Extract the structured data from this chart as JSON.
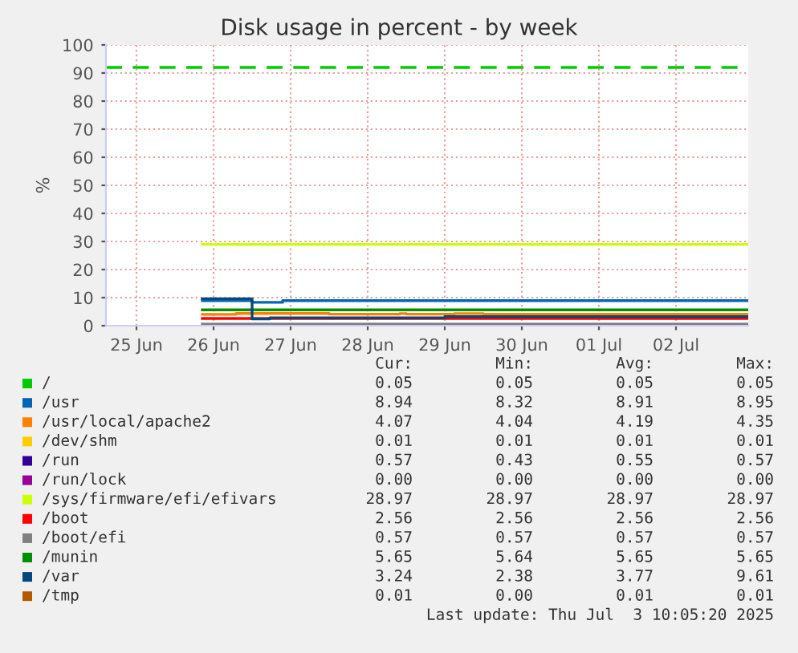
{
  "chart_data": {
    "type": "step",
    "title": "Disk usage in percent - by week",
    "ylabel": "%",
    "xlim": [
      "2025-06-25T02:30",
      "2025-07-03T10:30"
    ],
    "ylim": [
      0,
      100
    ],
    "yticks": [
      0,
      10,
      20,
      30,
      40,
      50,
      60,
      70,
      80,
      90,
      100
    ],
    "xticks": [
      {
        "value": "2025-06-25T12:00",
        "label": "25 Jun"
      },
      {
        "value": "2025-06-26T12:00",
        "label": "26 Jun"
      },
      {
        "value": "2025-06-27T12:00",
        "label": "27 Jun"
      },
      {
        "value": "2025-06-28T12:00",
        "label": "28 Jun"
      },
      {
        "value": "2025-06-29T12:00",
        "label": "29 Jun"
      },
      {
        "value": "2025-06-30T12:00",
        "label": "30 Jun"
      },
      {
        "value": "2025-07-01T12:00",
        "label": "01 Jul"
      },
      {
        "value": "2025-07-02T12:00",
        "label": "02 Jul"
      }
    ],
    "grid": true,
    "legend": "bottom",
    "line_style": "solid",
    "marker": "none",
    "ref_lines": [
      {
        "axis": "y",
        "value": 92,
        "label": null,
        "color": "#00cc00",
        "line_style": "dashed"
      }
    ],
    "series": [
      {
        "name": "/",
        "color": "#00cc00",
        "values": [
          null,
          null
        ]
      },
      {
        "name": "/usr",
        "color": "#0066b3",
        "x": [
          "2025-06-26T08:30",
          "2025-06-27T00:00",
          "2025-06-27T09:30",
          "2025-07-03T10:30"
        ],
        "values": [
          8.94,
          8.32,
          8.94,
          8.94
        ]
      },
      {
        "name": "/usr/local/apache2",
        "color": "#ff8000",
        "x": [
          "2025-06-26T08:30",
          "2025-06-26T19:00",
          "2025-06-28T00:00",
          "2025-06-28T22:00",
          "2025-06-29T00:00",
          "2025-06-29T15:00",
          "2025-06-30T00:00",
          "2025-07-03T10:30"
        ],
        "values": [
          4.04,
          4.35,
          4.1,
          4.3,
          4.1,
          4.3,
          4.07,
          4.07
        ]
      },
      {
        "name": "/dev/shm",
        "color": "#ffcc00",
        "values": [
          null,
          null
        ]
      },
      {
        "name": "/run",
        "color": "#330099",
        "values": [
          null,
          null
        ]
      },
      {
        "name": "/run/lock",
        "color": "#990099",
        "values": [
          null,
          null
        ]
      },
      {
        "name": "/sys/firmware/efi/efivars",
        "color": "#ccff00",
        "x": [
          "2025-06-26T08:30",
          "2025-07-03T10:30"
        ],
        "values": [
          28.97,
          28.97
        ]
      },
      {
        "name": "/boot",
        "color": "#ff0000",
        "x": [
          "2025-06-26T08:30",
          "2025-07-03T10:30"
        ],
        "values": [
          2.56,
          2.56
        ]
      },
      {
        "name": "/boot/efi",
        "color": "#808080",
        "x": [
          "2025-06-26T08:30",
          "2025-07-03T10:30"
        ],
        "values": [
          0.57,
          0.57
        ]
      },
      {
        "name": "/munin",
        "color": "#008f00",
        "x": [
          "2025-06-26T08:30",
          "2025-07-03T10:30"
        ],
        "values": [
          5.65,
          5.65
        ]
      },
      {
        "name": "/var",
        "color": "#00487d",
        "x": [
          "2025-06-26T08:30",
          "2025-06-27T00:00",
          "2025-06-27T05:30",
          "2025-06-29T12:00",
          "2025-07-03T10:30"
        ],
        "values": [
          9.61,
          2.38,
          2.8,
          3.24,
          3.24
        ]
      },
      {
        "name": "/tmp",
        "color": "#b35a00",
        "values": [
          null,
          null
        ]
      }
    ],
    "annotations": [
      "Cur:",
      "Min:",
      "Avg:",
      "Max:",
      "0.05",
      "0.05",
      "0.05",
      "0.05",
      "8.94",
      "8.32",
      "8.91",
      "8.95",
      "4.07",
      "4.04",
      "4.19",
      "4.35",
      "0.01",
      "0.01",
      "0.01",
      "0.01",
      "0.57",
      "0.43",
      "0.55",
      "0.57",
      "0.00",
      "0.00",
      "0.00",
      "0.00",
      "28.97",
      "28.97",
      "28.97",
      "28.97",
      "2.56",
      "2.56",
      "2.56",
      "2.56",
      "0.57",
      "0.57",
      "0.57",
      "0.57",
      "5.65",
      "5.64",
      "5.65",
      "5.65",
      "3.24",
      "2.38",
      "3.77",
      "9.61",
      "0.01",
      "0.00",
      "0.01",
      "0.01",
      "Last update: Thu Jul  3 10:05:20 2025"
    ]
  }
}
